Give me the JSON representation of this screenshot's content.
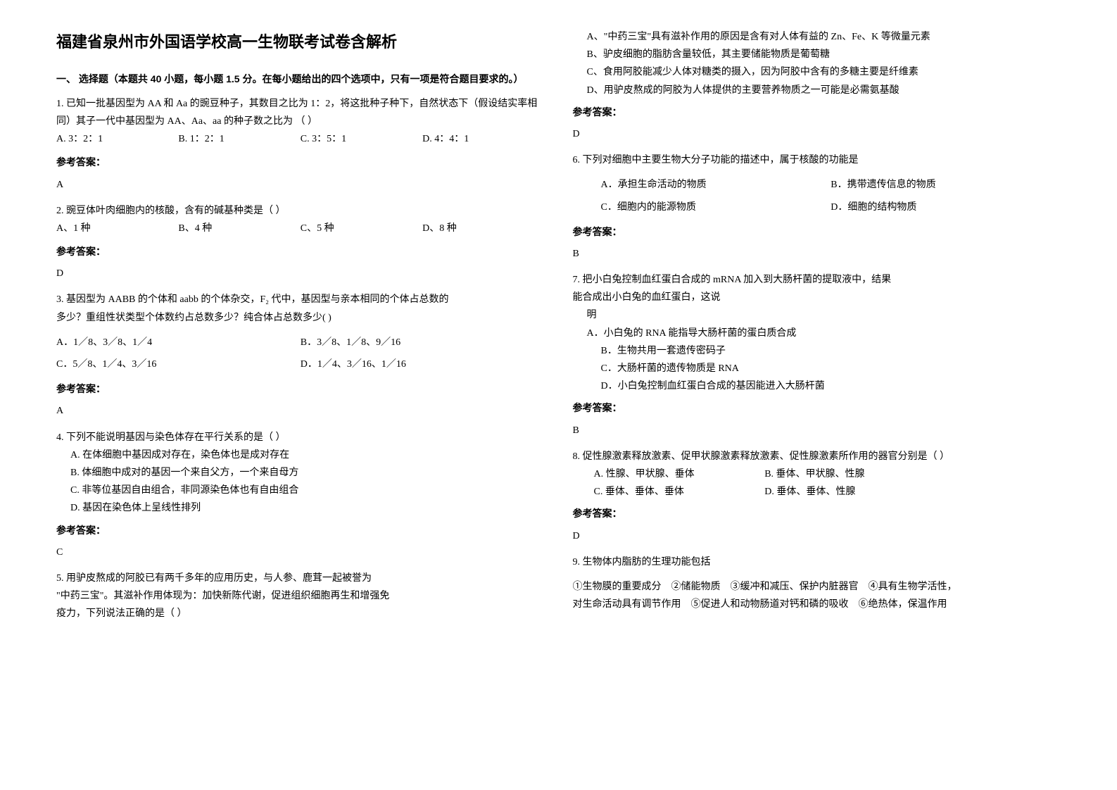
{
  "title": "福建省泉州市外国语学校高一生物联考试卷含解析",
  "section1": "一、 选择题（本题共 40 小题，每小题 1.5 分。在每小题给出的四个选项中，只有一项是符合题目要求的。）",
  "q1": {
    "text": "1. 已知一批基因型为 AA 和 Aa 的豌豆种子，其数目之比为 1：2，将这批种子种下，自然状态下（假设结实率相同）其子一代中基因型为 AA、Aa、aa 的种子数之比为        （        ）",
    "optA": "A. 3：2：1",
    "optB": "B. 1：2：1",
    "optC": "C. 3：5：1",
    "optD": "D. 4：4：1",
    "ansLabel": "参考答案：",
    "ans": "A"
  },
  "q2": {
    "text": "2. 豌豆体叶肉细胞内的核酸，含有的碱基种类是（   ）",
    "optA": "A、1 种",
    "optB": "B、4 种",
    "optC": "C、5 种",
    "optD": "D、8 种",
    "ansLabel": "参考答案：",
    "ans": "D"
  },
  "q3": {
    "line1": "3. 基因型为 AABB 的个体和 aabb 的个体杂交，F₂ 代中，基因型与亲本相同的个体占总数的",
    "line2": "多少？重组性状类型个体数约占总数多少？纯合体占总数多少(    )",
    "optA": "A．1／8、3／8、1／4",
    "optB": "B．3／8、1／8、9／16",
    "optC": "C．5／8、1／4、3／16",
    "optD": "D．1／4、3／16、1／16",
    "ansLabel": "参考答案：",
    "ans": "A"
  },
  "q4": {
    "text": "4. 下列不能说明基因与染色体存在平行关系的是（          ）",
    "optA": "A. 在体细胞中基因成对存在，染色体也是成对存在",
    "optB": "B. 体细胞中成对的基因一个来自父方，一个来自母方",
    "optC": "C. 非等位基因自由组合，非同源染色体也有自由组合",
    "optD": "D. 基因在染色体上呈线性排列",
    "ansLabel": "参考答案：",
    "ans": "C"
  },
  "q5": {
    "line1": "5. 用驴皮熬成的阿胶已有两千多年的应用历史，与人参、鹿茸一起被誉为",
    "line2": "\"中药三宝\"。其滋补作用体现为：加快新陈代谢，促进组织细胞再生和增强免",
    "line3": "疫力，下列说法正确的是（     ）",
    "optA": "A、\"中药三宝\"具有滋补作用的原因是含有对人体有益的 Zn、Fe、K 等微量元素",
    "optB": "B、驴皮细胞的脂肪含量较低，其主要储能物质是葡萄糖",
    "optC": "C、食用阿胶能减少人体对糖类的摄入，因为阿胶中含有的多糖主要是纤维素",
    "optD": "D、用驴皮熬成的阿胶为人体提供的主要营养物质之一可能是必需氨基酸",
    "ansLabel": "参考答案：",
    "ans": "D"
  },
  "q6": {
    "text": "6. 下列对细胞中主要生物大分子功能的描述中，属于核酸的功能是",
    "optA": "A．承担生命活动的物质",
    "optB": "B．携带遗传信息的物质",
    "optC": "C．细胞内的能源物质",
    "optD": "D．细胞的结构物质",
    "ansLabel": "参考答案：",
    "ans": "B"
  },
  "q7": {
    "line1": "7. 把小白兔控制血红蛋白合成的 mRNA 加入到大肠杆菌的提取液中，结果",
    "line2": "能合成出小白兔的血红蛋白，这说",
    "line3": "明",
    "optA": "A．小白兔的 RNA 能指导大肠杆菌的蛋白质合成",
    "optB": "B．生物共用一套遗传密码子",
    "optC": "C．大肠杆菌的遗传物质是 RNA",
    "optD": "D．小白兔控制血红蛋白合成的基因能进入大肠杆菌",
    "ansLabel": "参考答案：",
    "ans": "B"
  },
  "q8": {
    "text": "8. 促性腺激素释放激素、促甲状腺激素释放激素、促性腺激素所作用的器官分别是（      ）",
    "optA": "A. 性腺、甲状腺、垂体",
    "optB": "B. 垂体、甲状腺、性腺",
    "optC": "C. 垂体、垂体、垂体",
    "optD": "D. 垂体、垂体、性腺",
    "ansLabel": "参考答案：",
    "ans": "D"
  },
  "q9": {
    "text": "9. 生物体内脂肪的生理功能包括",
    "line1": "①生物膜的重要成分　②储能物质　③缓冲和减压、保护内脏器官　④具有生物学活性，",
    "line2": "对生命活动具有调节作用　⑤促进人和动物肠道对钙和磷的吸收　⑥绝热体，保温作用"
  }
}
